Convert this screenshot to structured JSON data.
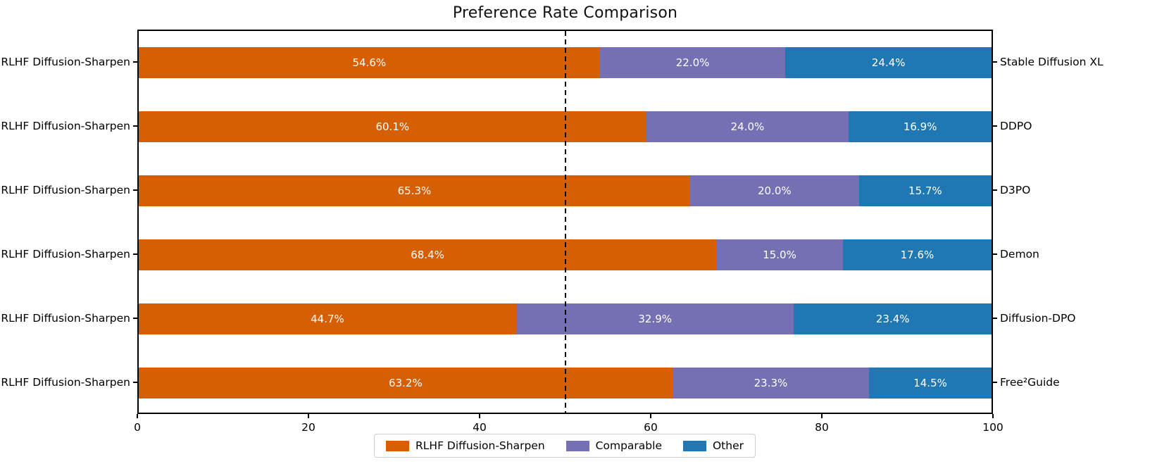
{
  "chart_data": {
    "type": "bar",
    "orientation": "horizontal",
    "stacked": true,
    "title": "Preference Rate Comparison",
    "row_left_label": "RLHF Diffusion-Sharpen",
    "categories": [
      "Stable Diffusion XL",
      "DDPO",
      "D3PO",
      "Demon",
      "Diffusion-DPO",
      "Free²Guide"
    ],
    "series": [
      {
        "name": "RLHF Diffusion-Sharpen",
        "color": "#D65F04",
        "values": [
          54.6,
          60.1,
          65.3,
          68.4,
          44.7,
          63.2
        ]
      },
      {
        "name": "Comparable",
        "color": "#7570B3",
        "values": [
          22.0,
          24.0,
          20.0,
          15.0,
          32.9,
          23.3
        ]
      },
      {
        "name": "Other",
        "color": "#1F77B4",
        "values": [
          24.4,
          16.9,
          15.7,
          17.6,
          23.4,
          14.5
        ]
      }
    ],
    "value_suffix": "%",
    "value_decimals": 1,
    "xlim": [
      0,
      100
    ],
    "x_ticks": [
      0,
      20,
      40,
      60,
      80,
      100
    ],
    "reference_line_x": 50,
    "grid": false,
    "legend_position": "bottom-center",
    "colors": {
      "value_text": "#FFFFFF",
      "reference_line": "#000000",
      "axis": "#000000"
    }
  }
}
